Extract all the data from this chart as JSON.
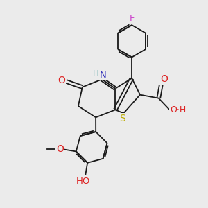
{
  "background_color": "#ebebeb",
  "bond_color": "#1a1a1a",
  "figsize": [
    3.0,
    3.0
  ],
  "dpi": 100,
  "atoms": {
    "F": {
      "color": "#cc44cc"
    },
    "O": {
      "color": "#dd2222"
    },
    "N": {
      "color": "#3333bb"
    },
    "S": {
      "color": "#bbaa00"
    },
    "H": {
      "color": "#1a1a1a"
    }
  }
}
